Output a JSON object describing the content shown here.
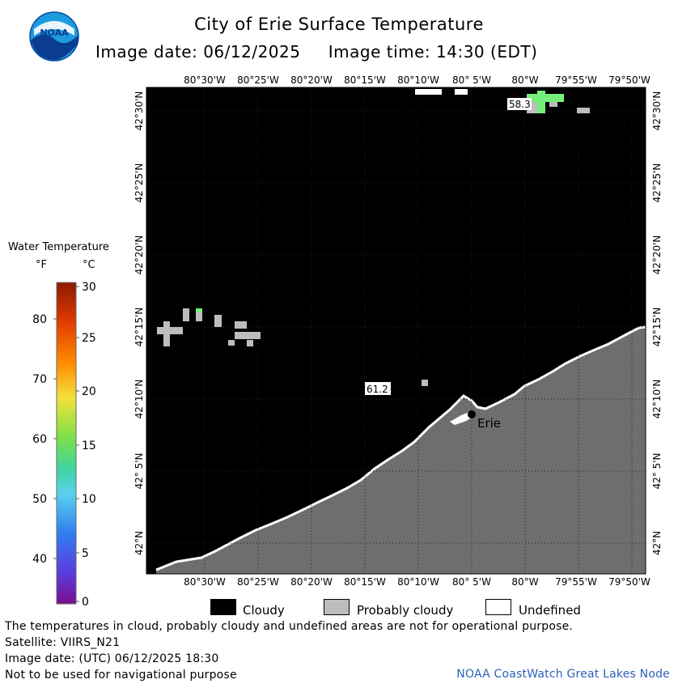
{
  "header": {
    "title": "City of Erie Surface Temperature",
    "subtitle": "Image date: 06/12/2025     Image time: 14:30 (EDT)",
    "logo_text": "NOAA"
  },
  "map": {
    "lon_labels": [
      "80°30'W",
      "80°25'W",
      "80°20'W",
      "80°15'W",
      "80°10'W",
      "80° 5'W",
      "80°W",
      "79°55'W",
      "79°50'W"
    ],
    "lat_labels": [
      "42°30'N",
      "42°25'N",
      "42°20'N",
      "42°15'N",
      "42°10'N",
      "42° 5'N",
      "42°N"
    ],
    "city_label": "Erie",
    "temp_labels": [
      "58.3",
      "61.2"
    ],
    "colors": {
      "cloudy": "#000000",
      "land": "#6e6e6e",
      "probably_cloudy": "#bdbdbd",
      "undefined": "#ffffff",
      "warm_water": "#74f07a"
    }
  },
  "legend": {
    "title": "Water Temperature",
    "unit_f": "°F",
    "unit_c": "°C",
    "f_ticks": [
      "80",
      "70",
      "60",
      "50",
      "40"
    ],
    "c_ticks": [
      "30",
      "25",
      "20",
      "15",
      "10",
      "5",
      "0"
    ],
    "items": [
      {
        "label": "Cloudy",
        "color": "#000000"
      },
      {
        "label": "Probably cloudy",
        "color": "#bdbdbd"
      },
      {
        "label": "Undefined",
        "color": "#ffffff"
      }
    ]
  },
  "footer": {
    "line1": "The temperatures in cloud, probably cloudy and undefined areas are not for operational purpose.",
    "line2": "Satellite: VIIRS_N21",
    "line3": "Image date: (UTC) 06/12/2025  18:30",
    "line4": "Not to be used for navigational purpose",
    "credit": "NOAA CoastWatch Great Lakes Node"
  }
}
